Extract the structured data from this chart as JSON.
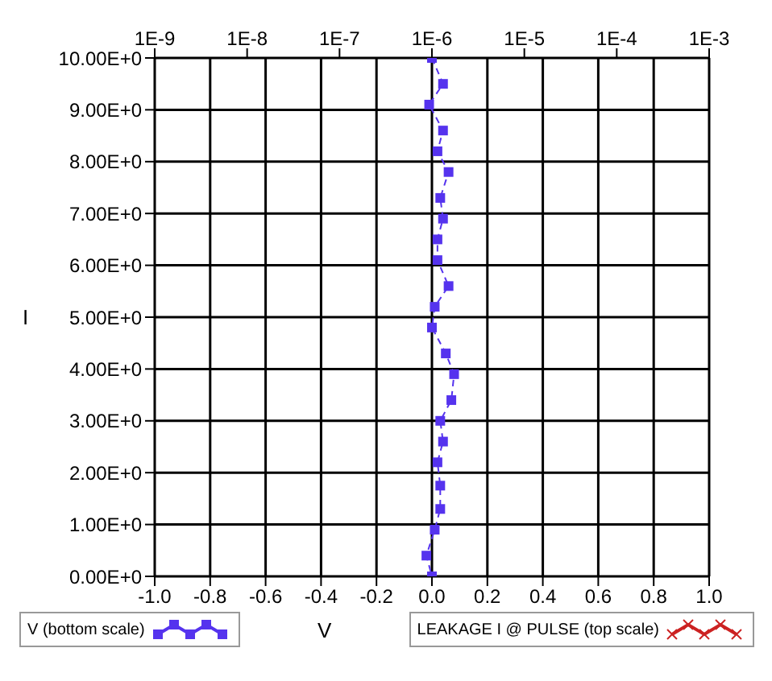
{
  "chart_data": {
    "type": "line",
    "xlabel": "V",
    "ylabel": "I",
    "legend": "bottom",
    "grid": true,
    "marker": "square",
    "line_style": "dashed",
    "log": "x2",
    "xlim": [
      -1.0,
      1.0
    ],
    "xticks": [
      {
        "value": -1,
        "label": "-1.0"
      },
      -0.8,
      -0.6,
      -0.4,
      -0.2,
      {
        "value": 0,
        "label": "0.0"
      },
      0.2,
      0.4,
      0.6,
      0.8,
      {
        "value": 1,
        "label": "1.0"
      }
    ],
    "x2lim": [
      1e-09,
      0.001
    ],
    "x2ticks": [
      {
        "value": 1e-09,
        "label": "1E-9"
      },
      {
        "value": 1e-08,
        "label": "1E-8"
      },
      {
        "value": 1e-07,
        "label": "1E-7"
      },
      {
        "value": 1e-06,
        "label": "1E-6"
      },
      {
        "value": 1e-05,
        "label": "1E-5"
      },
      {
        "value": 0.0001,
        "label": "1E-4"
      },
      {
        "value": 0.001,
        "label": "1E-3"
      }
    ],
    "ylim": [
      0,
      10
    ],
    "yticks": [
      {
        "value": 0,
        "label": "0.00E+0"
      },
      {
        "value": 1,
        "label": "1.00E+0"
      },
      {
        "value": 2,
        "label": "2.00E+0"
      },
      {
        "value": 3,
        "label": "3.00E+0"
      },
      {
        "value": 4,
        "label": "4.00E+0"
      },
      {
        "value": 5,
        "label": "5.00E+0"
      },
      {
        "value": 6,
        "label": "6.00E+0"
      },
      {
        "value": 7,
        "label": "7.00E+0"
      },
      {
        "value": 8,
        "label": "8.00E+0"
      },
      {
        "value": 9,
        "label": "9.00E+0"
      },
      {
        "value": 10,
        "label": "10.00E+0"
      }
    ],
    "series": [
      {
        "name": "V (bottom scale)",
        "color": "#5533ee",
        "x": [
          0.0,
          0.04,
          -0.01,
          0.04,
          0.02,
          0.06,
          0.03,
          0.04,
          0.02,
          0.02,
          0.06,
          0.01,
          0.0,
          0.05,
          0.08,
          0.07,
          0.03,
          0.04,
          0.02,
          0.03,
          0.03,
          0.01,
          -0.02,
          0.0
        ],
        "values": [
          10.0,
          9.5,
          9.1,
          8.6,
          8.2,
          7.8,
          7.3,
          6.9,
          6.5,
          6.1,
          5.6,
          5.2,
          4.8,
          4.3,
          3.9,
          3.4,
          3.0,
          2.6,
          2.2,
          1.75,
          1.3,
          0.9,
          0.4,
          0.0
        ]
      },
      {
        "name": "LEAKAGE I @ PULSE (top scale)",
        "color": "#cc2222",
        "marker": "cross",
        "axis": "x2",
        "x": [
          null
        ],
        "values": [
          null
        ]
      }
    ]
  }
}
